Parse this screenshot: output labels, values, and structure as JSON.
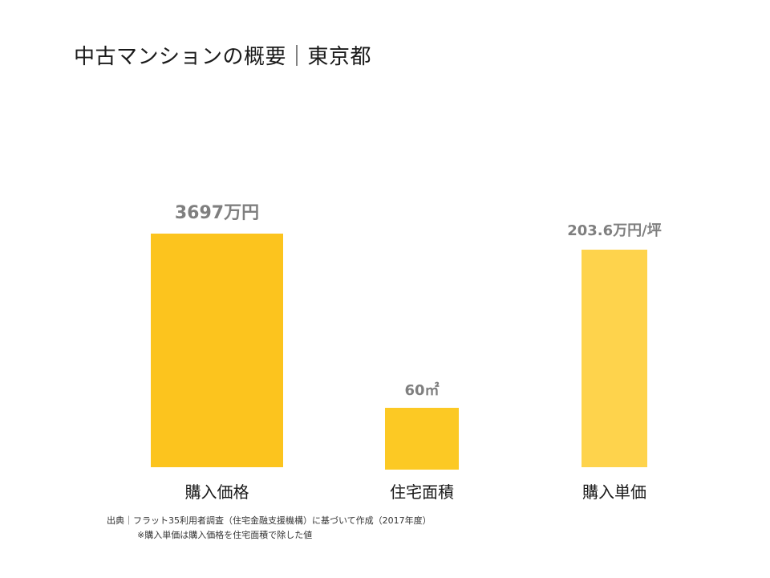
{
  "title": "中古マンションの概要｜東京都",
  "chart_data": {
    "type": "bar",
    "categories": [
      "購入価格",
      "住宅面積",
      "購入単価"
    ],
    "values": [
      3697,
      60,
      203.6
    ],
    "units": [
      "万円",
      "㎡",
      "万円/坪"
    ],
    "data_labels": [
      "3697万円",
      "60㎡",
      "203.6万円/坪"
    ],
    "colors": [
      "#fcc41e",
      "#fcc924",
      "#fed34c"
    ],
    "note": "each bar uses its own unit scale"
  },
  "source": {
    "line1": "出典｜フラット35利用者調査（住宅金融支援機構）に基づいて作成（2017年度）",
    "line2": "※購入単価は購入価格を住宅面積で除した値"
  }
}
